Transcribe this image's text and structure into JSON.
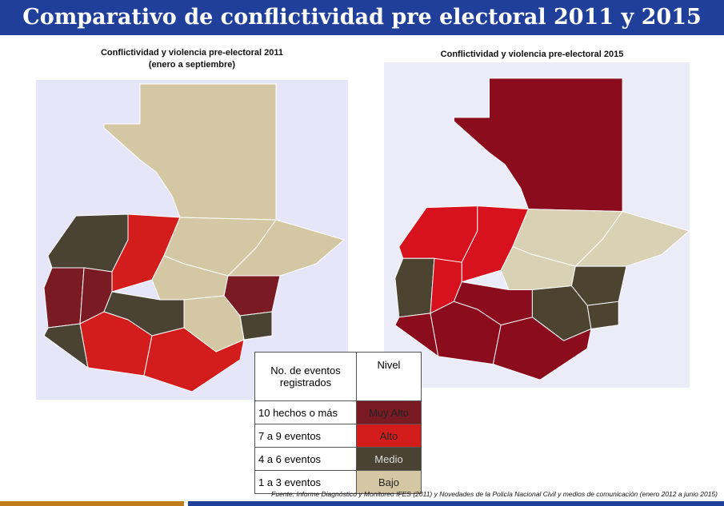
{
  "header": {
    "title": "Comparativo de conflictividad pre electoral 2011 y 2015"
  },
  "maps": [
    {
      "title": "Conflictividad y violencia pre-electoral 2011",
      "subtitle": "(enero a septiembre)"
    },
    {
      "title": "Conflictividad y violencia pre-electoral 2015"
    }
  ],
  "legend": {
    "headers": [
      "No. de eventos registrados",
      "Nivel"
    ],
    "rows": [
      [
        "10 hechos o más",
        "Muy Alto"
      ],
      [
        "7 a 9 eventos",
        "Alto"
      ],
      [
        "4 a 6 eventos",
        "Medio"
      ],
      [
        "1 a 3 eventos",
        "Bajo"
      ]
    ]
  },
  "source": "Fuente: Informe Diagnóstico y Monitoreo  IFES (2011) y Novedades de la Policía Nacional Civil y medios de comunicación (enero 2012 a junio 2015)"
}
